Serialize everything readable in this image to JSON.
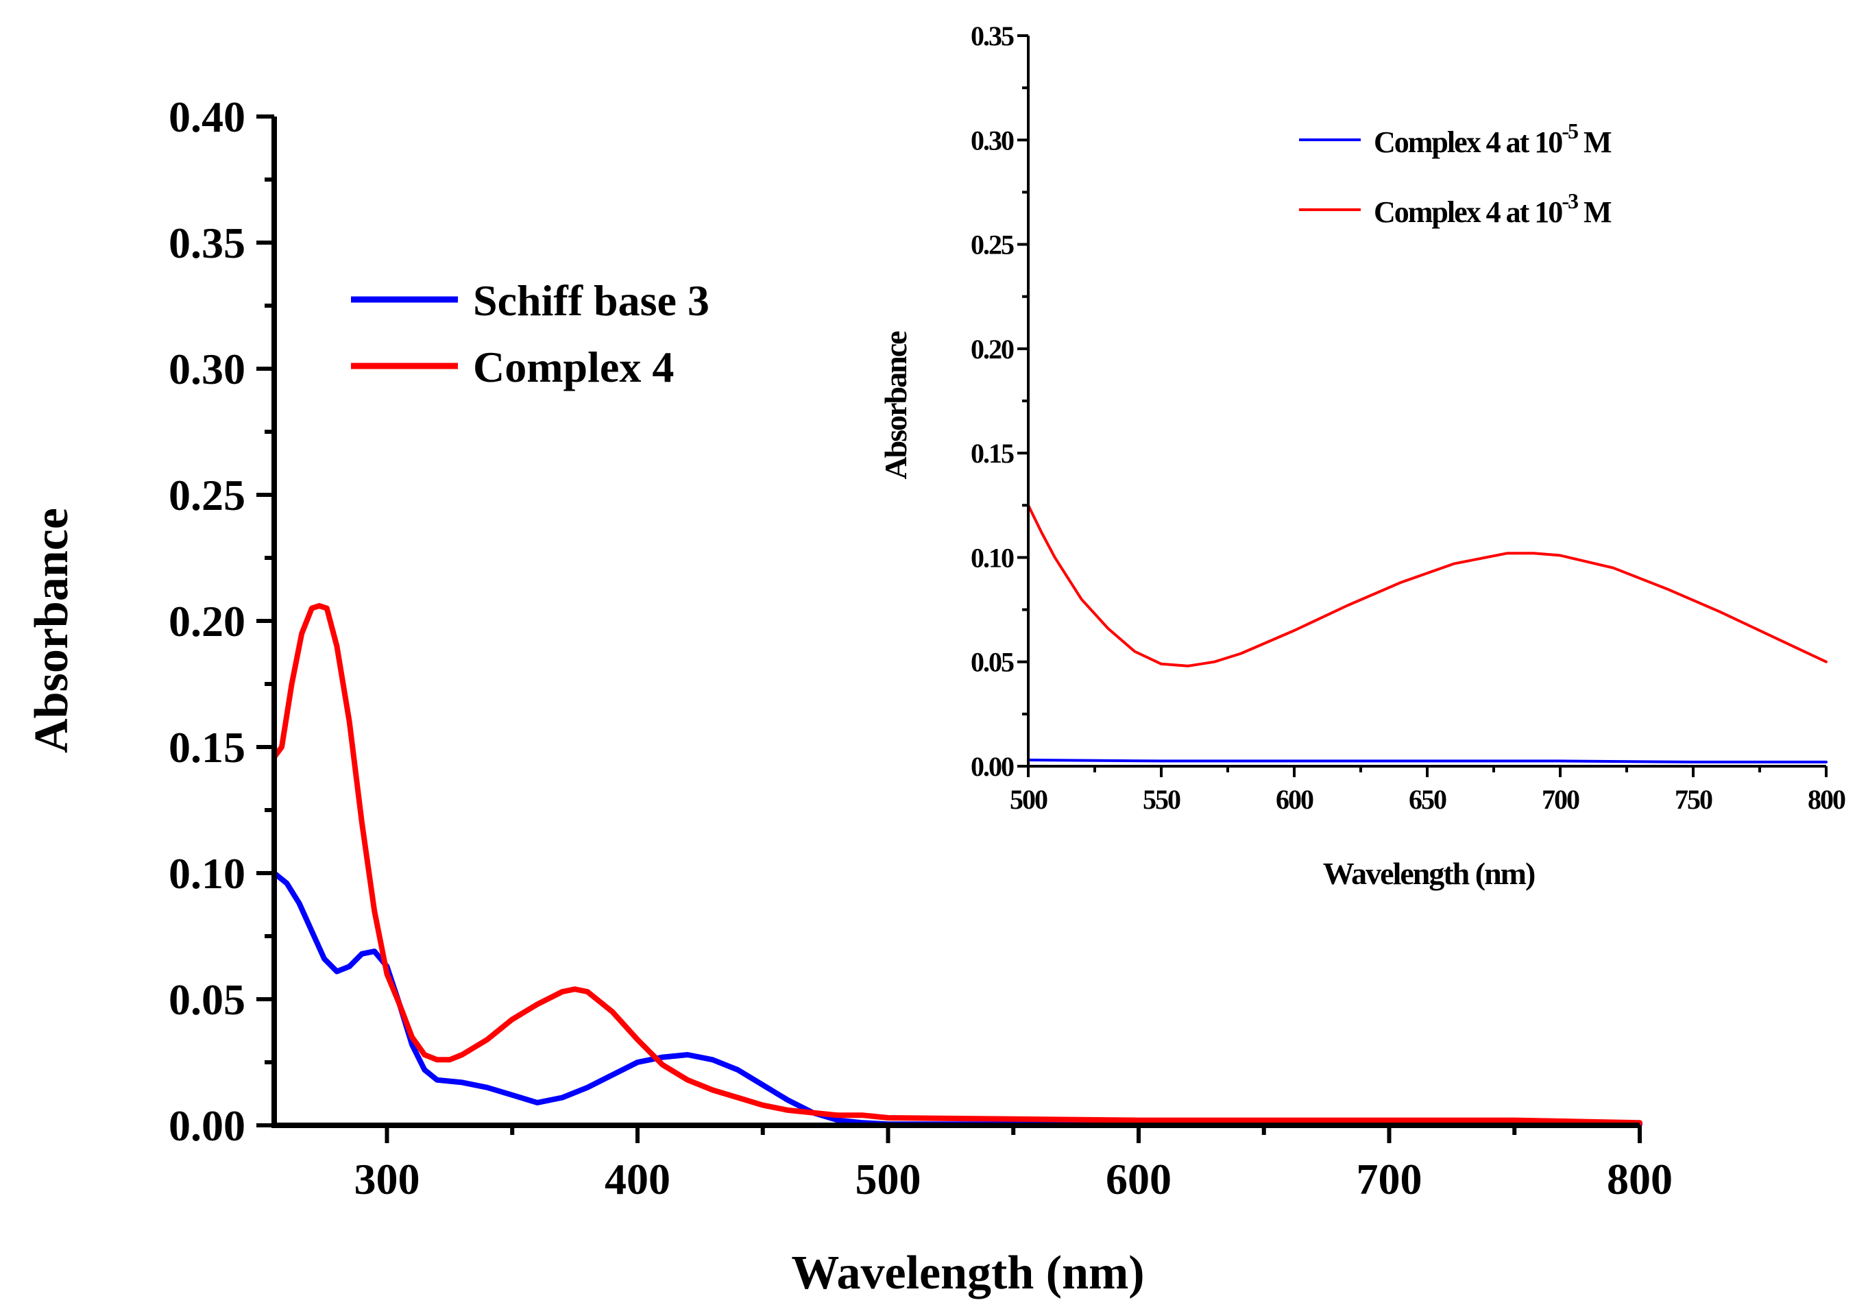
{
  "chart_data": [
    {
      "type": "line",
      "title": "",
      "xlabel": "Wavelength (nm)",
      "ylabel": "Absorbance",
      "xlim": [
        255,
        800
      ],
      "ylim": [
        0,
        0.4
      ],
      "x_ticks": [
        "300",
        "400",
        "500",
        "600",
        "700",
        "800"
      ],
      "y_ticks": [
        "0.00",
        "0.05",
        "0.10",
        "0.15",
        "0.20",
        "0.25",
        "0.30",
        "0.35",
        "0.40"
      ],
      "legend_position": "upper-left",
      "grid": false,
      "series": [
        {
          "name": "Schiff base 3",
          "color": "#0000ff",
          "x": [
            255,
            260,
            265,
            270,
            275,
            280,
            285,
            290,
            295,
            300,
            305,
            310,
            315,
            320,
            330,
            340,
            350,
            360,
            370,
            380,
            390,
            400,
            410,
            420,
            430,
            440,
            450,
            460,
            470,
            480,
            490,
            500,
            550,
            600,
            650,
            700,
            750,
            800
          ],
          "y": [
            0.1,
            0.096,
            0.088,
            0.077,
            0.066,
            0.061,
            0.063,
            0.068,
            0.069,
            0.063,
            0.048,
            0.032,
            0.022,
            0.018,
            0.017,
            0.015,
            0.012,
            0.009,
            0.011,
            0.015,
            0.02,
            0.025,
            0.027,
            0.028,
            0.026,
            0.022,
            0.016,
            0.01,
            0.005,
            0.002,
            0.001,
            0.0005,
            0.0005,
            0.0005,
            0.0005,
            0.0005,
            0.0005,
            0.0005
          ]
        },
        {
          "name": "Complex 4",
          "color": "#ff0000",
          "x": [
            255,
            258,
            262,
            266,
            270,
            273,
            276,
            280,
            285,
            290,
            295,
            300,
            305,
            310,
            315,
            320,
            325,
            330,
            340,
            350,
            360,
            370,
            375,
            380,
            390,
            400,
            410,
            420,
            430,
            440,
            450,
            460,
            470,
            480,
            490,
            500,
            550,
            600,
            650,
            700,
            750,
            800
          ],
          "y": [
            0.146,
            0.15,
            0.175,
            0.195,
            0.205,
            0.206,
            0.205,
            0.19,
            0.16,
            0.12,
            0.085,
            0.06,
            0.048,
            0.035,
            0.028,
            0.026,
            0.026,
            0.028,
            0.034,
            0.042,
            0.048,
            0.053,
            0.054,
            0.053,
            0.045,
            0.034,
            0.024,
            0.018,
            0.014,
            0.011,
            0.008,
            0.006,
            0.005,
            0.004,
            0.004,
            0.003,
            0.0025,
            0.002,
            0.002,
            0.002,
            0.002,
            0.001
          ]
        }
      ]
    },
    {
      "type": "line",
      "title": "",
      "xlabel": "Wavelength (nm)",
      "ylabel": "Absorbance",
      "xlim": [
        500,
        800
      ],
      "ylim": [
        0,
        0.35
      ],
      "x_ticks": [
        "500",
        "550",
        "600",
        "650",
        "700",
        "750",
        "800"
      ],
      "y_ticks": [
        "0.00",
        "0.05",
        "0.10",
        "0.15",
        "0.20",
        "0.25",
        "0.30",
        "0.35"
      ],
      "legend_position": "upper-right",
      "grid": false,
      "series": [
        {
          "name_prefix": "Complex 4 at 10",
          "name_exponent": "-5",
          "name_suffix": " M",
          "color": "#0000ff",
          "x": [
            500,
            550,
            600,
            650,
            700,
            750,
            800
          ],
          "y": [
            0.003,
            0.0025,
            0.0025,
            0.0025,
            0.0025,
            0.002,
            0.002
          ]
        },
        {
          "name_prefix": "Complex 4 at 10",
          "name_exponent": "-3",
          "name_suffix": " M",
          "color": "#ff0000",
          "x": [
            500,
            505,
            510,
            520,
            530,
            540,
            550,
            560,
            570,
            580,
            600,
            620,
            640,
            660,
            680,
            690,
            700,
            720,
            740,
            760,
            780,
            800
          ],
          "y": [
            0.125,
            0.112,
            0.1,
            0.08,
            0.066,
            0.055,
            0.049,
            0.048,
            0.05,
            0.054,
            0.065,
            0.077,
            0.088,
            0.097,
            0.102,
            0.102,
            0.101,
            0.095,
            0.085,
            0.074,
            0.062,
            0.05
          ]
        }
      ]
    }
  ]
}
